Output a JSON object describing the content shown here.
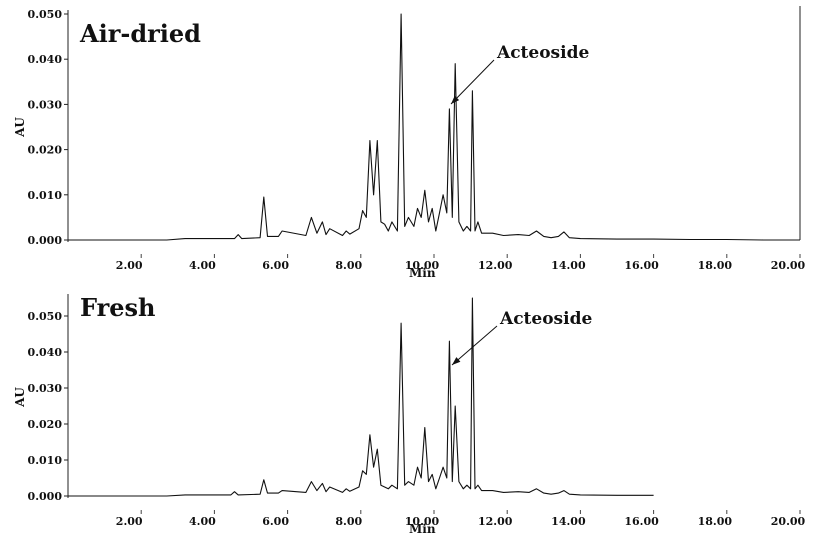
{
  "chart_data": [
    {
      "type": "line",
      "title": "Air-dried",
      "xlabel": "Min",
      "ylabel": "AU",
      "xlim": [
        0.0,
        20.0
      ],
      "ylim": [
        0.0,
        0.05
      ],
      "x_ticks": [
        "2.00",
        "4.00",
        "6.00",
        "8.00",
        "10.00",
        "12.00",
        "14.00",
        "16.00",
        "18.00",
        "20.00"
      ],
      "y_ticks": [
        "0.000",
        "0.010",
        "0.020",
        "0.030",
        "0.040",
        "0.050"
      ],
      "grid": false,
      "annotation": {
        "text": "Acteoside",
        "x": 10.45,
        "y": 0.03
      },
      "series": [
        {
          "x": [
            0.0,
            2.7,
            3.2,
            3.6,
            4.55,
            4.65,
            4.75,
            5.25,
            5.35,
            5.45,
            5.75,
            5.85,
            6.5,
            6.65,
            6.8,
            6.95,
            7.05,
            7.15,
            7.5,
            7.6,
            7.7,
            7.95,
            8.05,
            8.15,
            8.25,
            8.35,
            8.45,
            8.55,
            8.65,
            8.75,
            8.85,
            9.0,
            9.1,
            9.2,
            9.3,
            9.45,
            9.55,
            9.65,
            9.75,
            9.85,
            9.95,
            10.05,
            10.15,
            10.25,
            10.35,
            10.42,
            10.5,
            10.58,
            10.68,
            10.8,
            10.9,
            11.0,
            11.05,
            11.12,
            11.2,
            11.3,
            11.6,
            11.9,
            12.3,
            12.6,
            12.8,
            13.0,
            13.2,
            13.4,
            13.55,
            13.7,
            14.0,
            15.0,
            16.0,
            17.0,
            18.0,
            19.0,
            20.0
          ],
          "y": [
            0.0,
            0.0,
            0.0003,
            0.0003,
            0.0003,
            0.0012,
            0.0003,
            0.0005,
            0.0095,
            0.0008,
            0.0008,
            0.002,
            0.001,
            0.005,
            0.0015,
            0.004,
            0.0012,
            0.0025,
            0.001,
            0.002,
            0.0013,
            0.0025,
            0.0065,
            0.005,
            0.022,
            0.01,
            0.022,
            0.004,
            0.0035,
            0.002,
            0.004,
            0.002,
            0.05,
            0.003,
            0.005,
            0.003,
            0.007,
            0.005,
            0.011,
            0.004,
            0.007,
            0.002,
            0.006,
            0.01,
            0.006,
            0.029,
            0.005,
            0.039,
            0.004,
            0.002,
            0.003,
            0.002,
            0.033,
            0.002,
            0.004,
            0.0015,
            0.0015,
            0.001,
            0.0012,
            0.001,
            0.002,
            0.0008,
            0.0005,
            0.0008,
            0.0018,
            0.0005,
            0.0003,
            0.0002,
            0.0002,
            0.0001,
            0.0001,
            0.0,
            0.0
          ]
        }
      ]
    },
    {
      "type": "line",
      "title": "Fresh",
      "xlabel": "Min",
      "ylabel": "AU",
      "xlim": [
        0.0,
        20.0
      ],
      "ylim": [
        0.0,
        0.055
      ],
      "x_ticks": [
        "2.00",
        "4.00",
        "6.00",
        "8.00",
        "10.00",
        "12.00",
        "14.00",
        "16.00",
        "18.00",
        "20.00"
      ],
      "y_ticks": [
        "0.000",
        "0.010",
        "0.020",
        "0.030",
        "0.040",
        "0.050"
      ],
      "grid": false,
      "annotation": {
        "text": "Acteoside",
        "x": 10.45,
        "y": 0.042
      },
      "series": [
        {
          "x": [
            0.0,
            2.7,
            3.2,
            3.6,
            4.45,
            4.55,
            4.65,
            5.25,
            5.35,
            5.45,
            5.75,
            5.85,
            6.5,
            6.65,
            6.8,
            6.95,
            7.05,
            7.15,
            7.5,
            7.6,
            7.7,
            7.95,
            8.05,
            8.15,
            8.25,
            8.35,
            8.45,
            8.55,
            8.65,
            8.75,
            8.85,
            9.0,
            9.1,
            9.2,
            9.3,
            9.45,
            9.55,
            9.65,
            9.75,
            9.85,
            9.95,
            10.05,
            10.15,
            10.25,
            10.35,
            10.42,
            10.5,
            10.58,
            10.68,
            10.8,
            10.9,
            11.0,
            11.05,
            11.12,
            11.2,
            11.3,
            11.6,
            11.9,
            12.3,
            12.6,
            12.8,
            13.0,
            13.2,
            13.4,
            13.55,
            13.7,
            14.0,
            15.0,
            16.0
          ],
          "y": [
            0.0,
            0.0,
            0.0003,
            0.0003,
            0.0003,
            0.0012,
            0.0003,
            0.0005,
            0.0045,
            0.0008,
            0.0008,
            0.0015,
            0.001,
            0.004,
            0.0015,
            0.0035,
            0.0012,
            0.0025,
            0.001,
            0.002,
            0.0013,
            0.0025,
            0.007,
            0.006,
            0.017,
            0.008,
            0.013,
            0.003,
            0.0025,
            0.002,
            0.003,
            0.002,
            0.048,
            0.003,
            0.004,
            0.003,
            0.008,
            0.005,
            0.019,
            0.004,
            0.006,
            0.002,
            0.005,
            0.008,
            0.005,
            0.043,
            0.004,
            0.025,
            0.004,
            0.002,
            0.003,
            0.002,
            0.055,
            0.002,
            0.003,
            0.0015,
            0.0015,
            0.001,
            0.0012,
            0.001,
            0.002,
            0.0008,
            0.0005,
            0.0008,
            0.0015,
            0.0005,
            0.0003,
            0.0002,
            0.0002
          ]
        }
      ]
    }
  ]
}
